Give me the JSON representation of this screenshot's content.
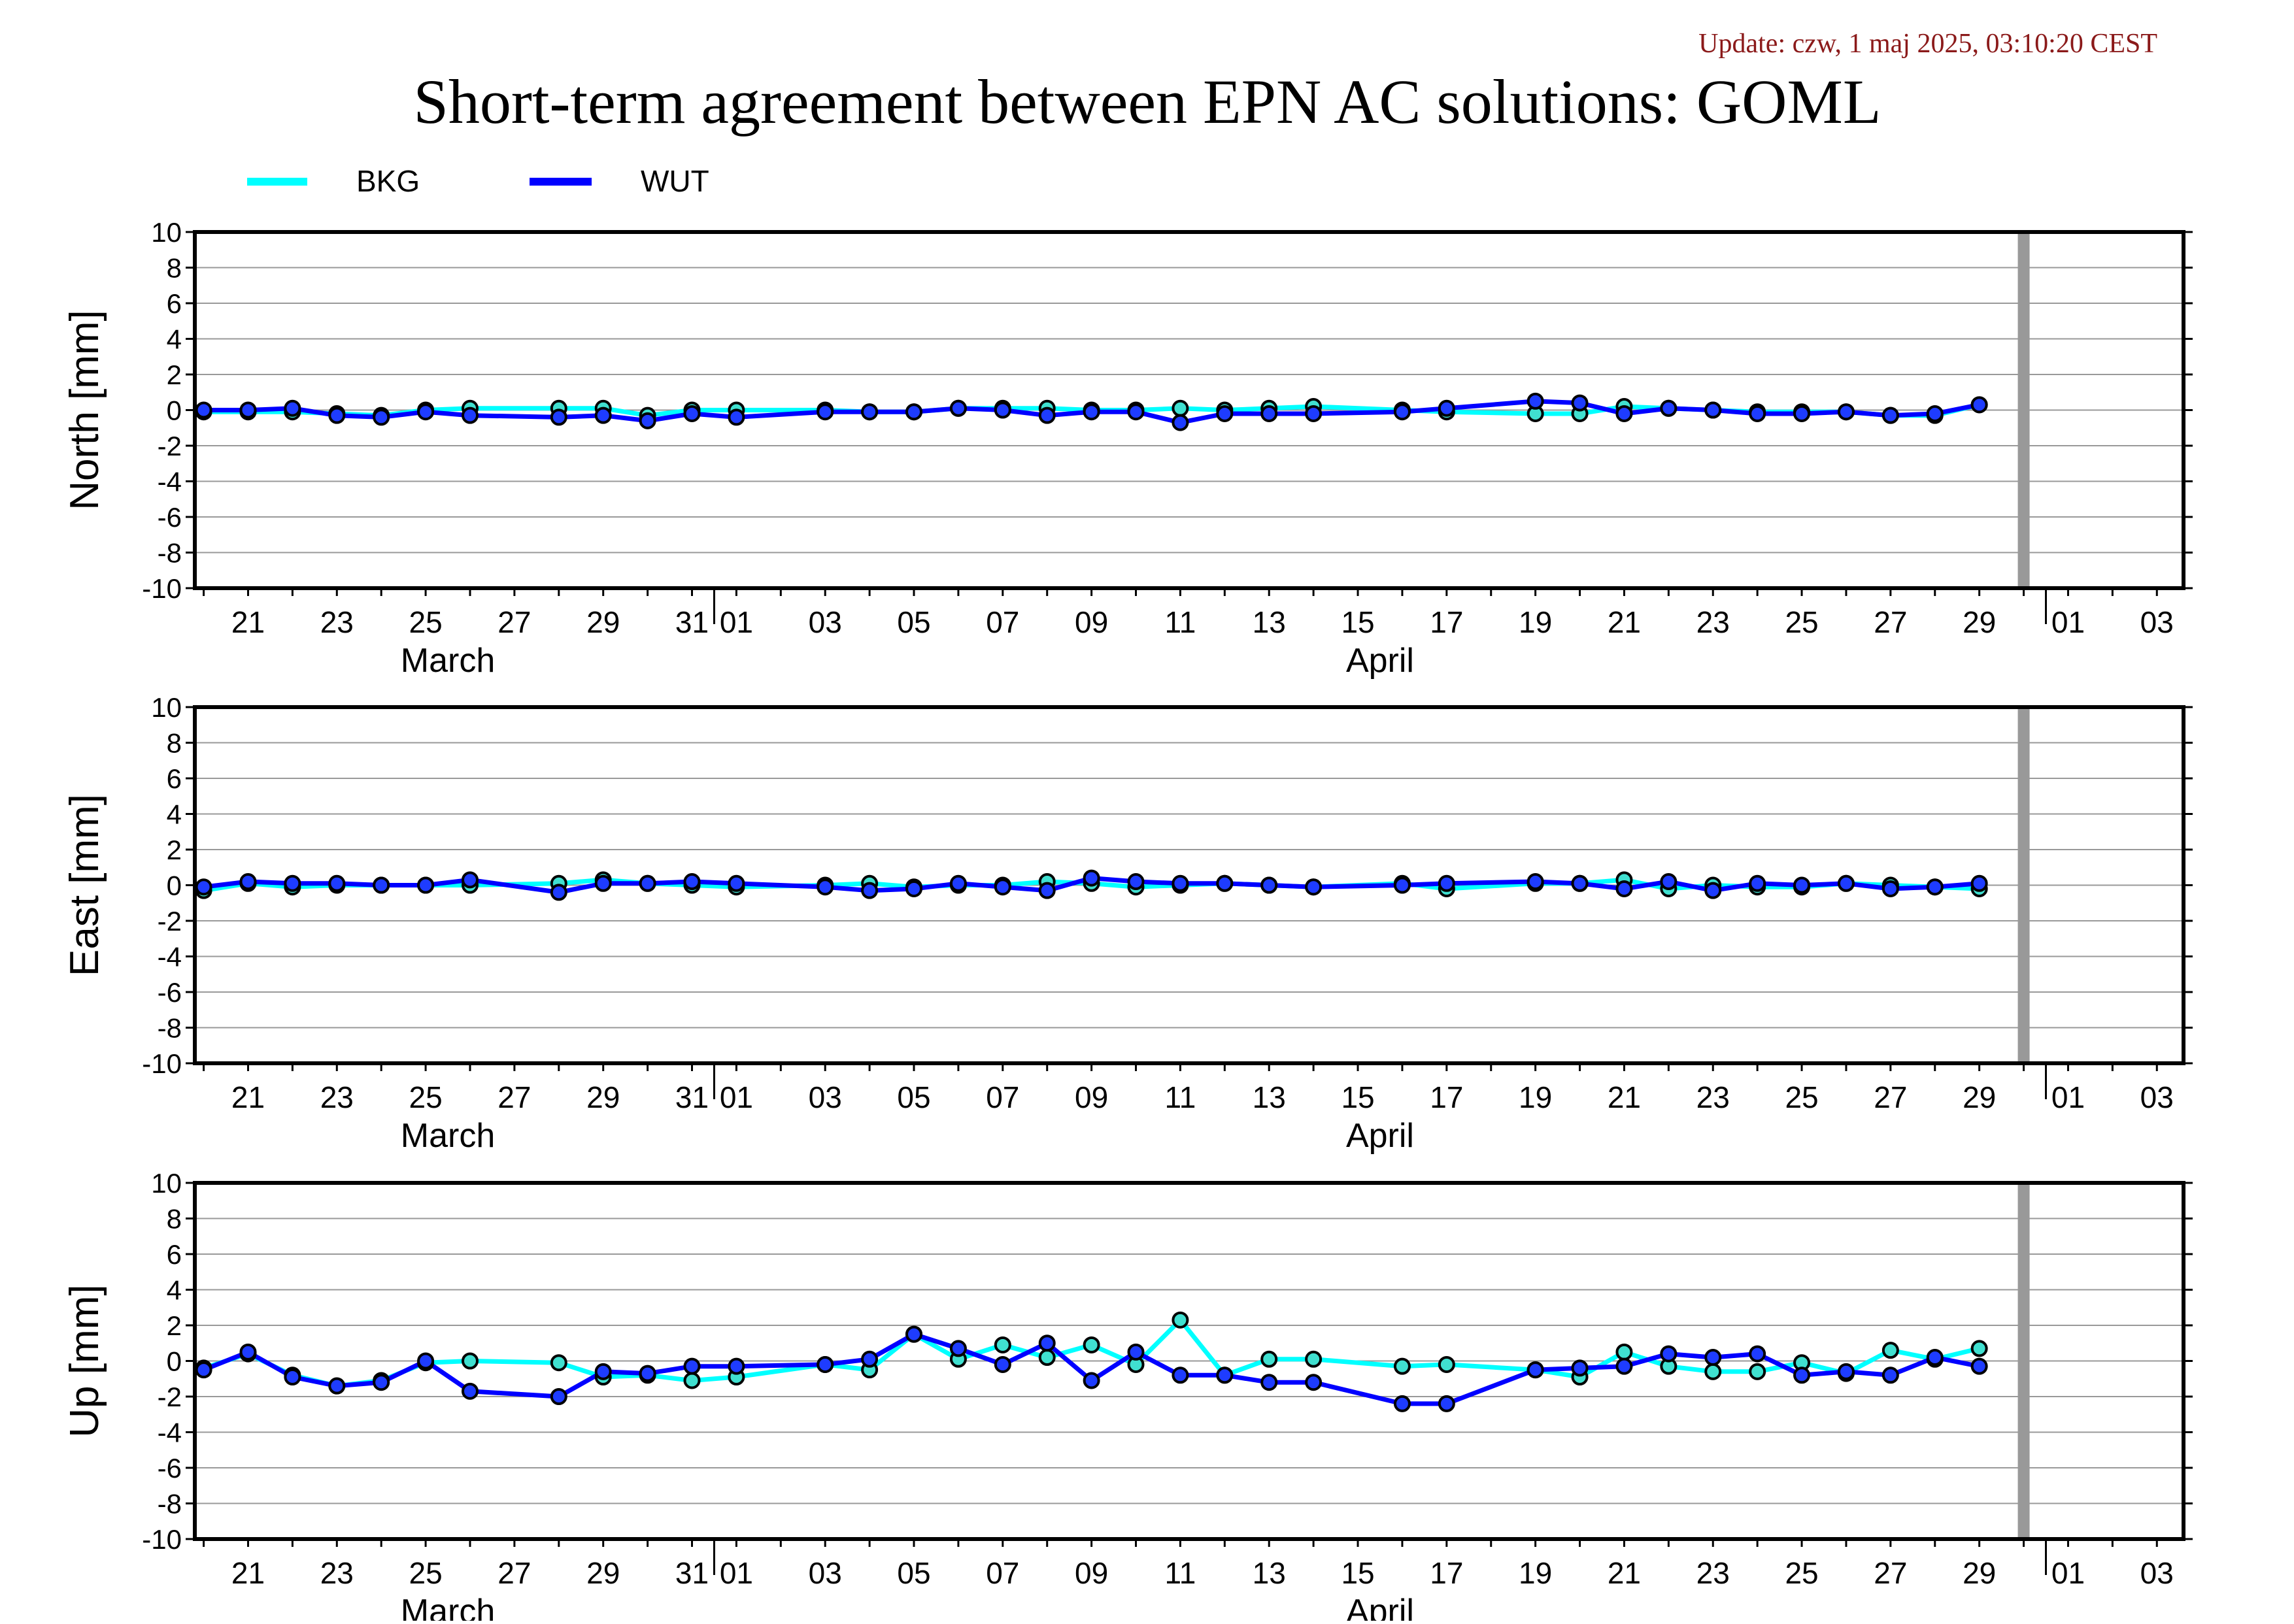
{
  "update_text": "Update: czw, 1 maj 2025, 03:10:20 CEST",
  "title": "Short-term agreement between EPN AC solutions: GOML",
  "legend": [
    {
      "name": "BKG",
      "color": "#00ffff"
    },
    {
      "name": "WUT",
      "color": "#0000ff"
    }
  ],
  "colors": {
    "update_text": "#8b1a1a",
    "today_marker": "#999999",
    "gridline": "#999999",
    "bkg_marker_fill": "#40e0d0",
    "wut_marker_fill": "#1e3cff"
  },
  "x_axis": {
    "tick_labels": [
      {
        "label": "21",
        "day": 21
      },
      {
        "label": "23",
        "day": 23
      },
      {
        "label": "25",
        "day": 25
      },
      {
        "label": "27",
        "day": 27
      },
      {
        "label": "29",
        "day": 29
      },
      {
        "label": "31",
        "day": 31
      },
      {
        "label": "01",
        "day": 32
      },
      {
        "label": "03",
        "day": 34
      },
      {
        "label": "05",
        "day": 36
      },
      {
        "label": "07",
        "day": 38
      },
      {
        "label": "09",
        "day": 40
      },
      {
        "label": "11",
        "day": 42
      },
      {
        "label": "13",
        "day": 44
      },
      {
        "label": "15",
        "day": 46
      },
      {
        "label": "17",
        "day": 48
      },
      {
        "label": "19",
        "day": 50
      },
      {
        "label": "21",
        "day": 52
      },
      {
        "label": "23",
        "day": 54
      },
      {
        "label": "25",
        "day": 56
      },
      {
        "label": "27",
        "day": 58
      },
      {
        "label": "29",
        "day": 60
      },
      {
        "label": "01",
        "day": 62
      },
      {
        "label": "03",
        "day": 64
      }
    ],
    "months": [
      {
        "label": "March",
        "day": 25.5
      },
      {
        "label": "April",
        "day": 46.5
      }
    ],
    "month_boundaries": [
      31.5,
      61.5
    ],
    "today_day": 61.0
  },
  "chart_data": [
    {
      "type": "line",
      "ylabel": "North [mm]",
      "ylim": [
        -10,
        10
      ],
      "yticks": [
        "10",
        "8",
        "6",
        "4",
        "2",
        "0",
        "-2",
        "-4",
        "-6",
        "-8",
        "-10"
      ],
      "grid": true,
      "series": [
        {
          "name": "BKG",
          "x": [
            20,
            21,
            22,
            23,
            24,
            25,
            26,
            28,
            29,
            30,
            31,
            32,
            34,
            35,
            36,
            37,
            38,
            39,
            40,
            41,
            42,
            43,
            44,
            45,
            47,
            48,
            50,
            51,
            52,
            53,
            54,
            55,
            56,
            57,
            58,
            59,
            60
          ],
          "y": [
            -0.1,
            -0.1,
            -0.1,
            -0.2,
            -0.3,
            0.0,
            0.1,
            0.1,
            0.1,
            -0.3,
            0.0,
            0.0,
            0.0,
            -0.1,
            -0.1,
            0.1,
            0.1,
            0.1,
            0.0,
            0.0,
            0.1,
            0.0,
            0.1,
            0.2,
            0.0,
            -0.1,
            -0.2,
            -0.2,
            0.2,
            0.1,
            0.0,
            -0.1,
            -0.1,
            -0.1,
            -0.3,
            -0.3,
            0.3
          ]
        },
        {
          "name": "WUT",
          "x": [
            20,
            21,
            22,
            23,
            24,
            25,
            26,
            28,
            29,
            30,
            31,
            32,
            34,
            35,
            36,
            37,
            38,
            39,
            40,
            41,
            42,
            43,
            44,
            45,
            47,
            48,
            50,
            51,
            52,
            53,
            54,
            55,
            56,
            57,
            58,
            59,
            60
          ],
          "y": [
            0.0,
            0.0,
            0.1,
            -0.3,
            -0.4,
            -0.1,
            -0.3,
            -0.4,
            -0.3,
            -0.6,
            -0.2,
            -0.4,
            -0.1,
            -0.1,
            -0.1,
            0.1,
            0.0,
            -0.3,
            -0.1,
            -0.1,
            -0.7,
            -0.2,
            -0.2,
            -0.2,
            -0.1,
            0.1,
            0.5,
            0.4,
            -0.2,
            0.1,
            0.0,
            -0.2,
            -0.2,
            -0.1,
            -0.3,
            -0.2,
            0.3
          ]
        }
      ]
    },
    {
      "type": "line",
      "ylabel": "East [mm]",
      "ylim": [
        -10,
        10
      ],
      "yticks": [
        "10",
        "8",
        "6",
        "4",
        "2",
        "0",
        "-2",
        "-4",
        "-6",
        "-8",
        "-10"
      ],
      "grid": true,
      "series": [
        {
          "name": "BKG",
          "x": [
            20,
            21,
            22,
            23,
            24,
            25,
            26,
            28,
            29,
            30,
            31,
            32,
            34,
            35,
            36,
            37,
            38,
            39,
            40,
            41,
            42,
            43,
            44,
            45,
            47,
            48,
            50,
            51,
            52,
            53,
            54,
            55,
            56,
            57,
            58,
            59,
            60
          ],
          "y": [
            -0.3,
            0.1,
            -0.1,
            0.0,
            0.0,
            0.0,
            0.0,
            0.1,
            0.3,
            0.1,
            0.0,
            -0.1,
            0.0,
            0.1,
            -0.1,
            0.0,
            0.0,
            0.2,
            0.1,
            -0.1,
            0.0,
            0.1,
            0.0,
            -0.1,
            0.1,
            -0.2,
            0.1,
            0.1,
            0.3,
            -0.2,
            0.0,
            -0.1,
            -0.1,
            0.1,
            0.0,
            -0.1,
            -0.2
          ]
        },
        {
          "name": "WUT",
          "x": [
            20,
            21,
            22,
            23,
            24,
            25,
            26,
            28,
            29,
            30,
            31,
            32,
            34,
            35,
            36,
            37,
            38,
            39,
            40,
            41,
            42,
            43,
            44,
            45,
            47,
            48,
            50,
            51,
            52,
            53,
            54,
            55,
            56,
            57,
            58,
            59,
            60
          ],
          "y": [
            -0.1,
            0.2,
            0.1,
            0.1,
            0.0,
            0.0,
            0.3,
            -0.4,
            0.1,
            0.1,
            0.2,
            0.1,
            -0.1,
            -0.3,
            -0.2,
            0.1,
            -0.1,
            -0.3,
            0.4,
            0.2,
            0.1,
            0.1,
            0.0,
            -0.1,
            0.0,
            0.1,
            0.2,
            0.1,
            -0.2,
            0.2,
            -0.3,
            0.1,
            0.0,
            0.1,
            -0.2,
            -0.1,
            0.1
          ]
        }
      ]
    },
    {
      "type": "line",
      "ylabel": "Up [mm]",
      "ylim": [
        -10,
        10
      ],
      "yticks": [
        "10",
        "8",
        "6",
        "4",
        "2",
        "0",
        "-2",
        "-4",
        "-6",
        "-8",
        "-10"
      ],
      "grid": true,
      "series": [
        {
          "name": "BKG",
          "x": [
            20,
            21,
            22,
            23,
            24,
            25,
            26,
            28,
            29,
            30,
            31,
            32,
            34,
            35,
            36,
            37,
            38,
            39,
            40,
            41,
            42,
            43,
            44,
            45,
            47,
            48,
            50,
            51,
            52,
            53,
            54,
            55,
            56,
            57,
            58,
            59,
            60
          ],
          "y": [
            -0.4,
            0.4,
            -0.8,
            -1.4,
            -1.1,
            -0.1,
            0.0,
            -0.1,
            -0.9,
            -0.8,
            -1.1,
            -0.9,
            -0.2,
            -0.5,
            1.5,
            0.1,
            0.9,
            0.2,
            0.9,
            -0.2,
            2.3,
            -0.8,
            0.1,
            0.1,
            -0.3,
            -0.2,
            -0.5,
            -0.9,
            0.5,
            -0.3,
            -0.6,
            -0.6,
            -0.1,
            -0.7,
            0.6,
            0.1,
            0.7
          ]
        },
        {
          "name": "WUT",
          "x": [
            20,
            21,
            22,
            23,
            24,
            25,
            26,
            28,
            29,
            30,
            31,
            32,
            34,
            35,
            36,
            37,
            38,
            39,
            40,
            41,
            42,
            43,
            44,
            45,
            47,
            48,
            50,
            51,
            52,
            53,
            54,
            55,
            56,
            57,
            58,
            59,
            60
          ],
          "y": [
            -0.5,
            0.5,
            -0.9,
            -1.4,
            -1.2,
            0.0,
            -1.7,
            -2.0,
            -0.6,
            -0.7,
            -0.3,
            -0.3,
            -0.2,
            0.1,
            1.5,
            0.7,
            -0.2,
            1.0,
            -1.1,
            0.5,
            -0.8,
            -0.8,
            -1.2,
            -1.2,
            -2.4,
            -2.4,
            -0.5,
            -0.4,
            -0.3,
            0.4,
            0.2,
            0.4,
            -0.8,
            -0.6,
            -0.8,
            0.2,
            -0.3
          ]
        }
      ]
    }
  ]
}
